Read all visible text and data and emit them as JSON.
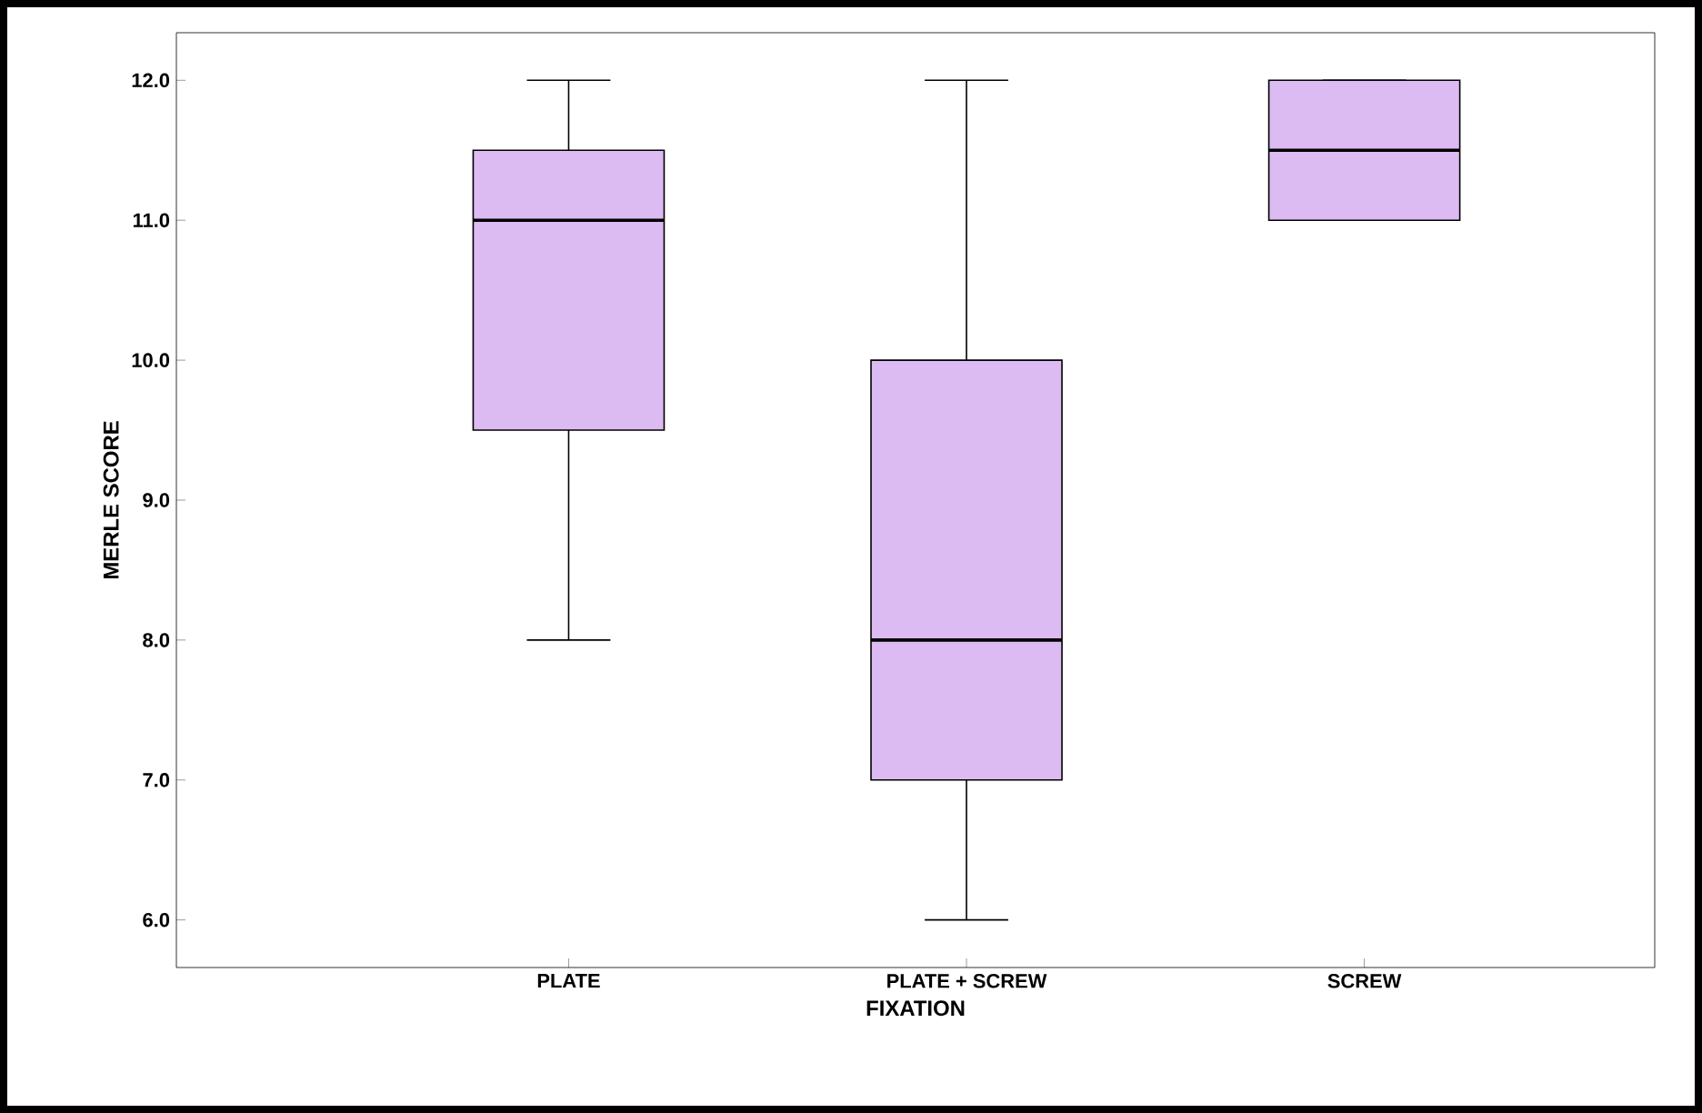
{
  "chart_data": {
    "type": "box",
    "xlabel": "FIXATION",
    "ylabel": "MERLE SCORE",
    "categories": [
      "PLATE",
      "PLATE + SCREW",
      "SCREW"
    ],
    "boxes": [
      {
        "low": 8,
        "q1": 9.5,
        "median": 11,
        "q3": 11.5,
        "high": 12
      },
      {
        "low": 6,
        "q1": 7,
        "median": 8,
        "q3": 10,
        "high": 12
      },
      {
        "low": 11,
        "q1": 11,
        "median": 11.5,
        "q3": 12,
        "high": 12
      }
    ],
    "color": "#dcbaf2",
    "ylim": [
      5.66,
      12.34
    ],
    "yticks": [
      {
        "value": 6,
        "label": "6.0"
      },
      {
        "value": 7,
        "label": "7.0"
      },
      {
        "value": 8,
        "label": "8.0"
      },
      {
        "value": 9,
        "label": "9.0"
      },
      {
        "value": 10,
        "label": "10.0"
      },
      {
        "value": 11,
        "label": "11.0"
      },
      {
        "value": 12,
        "label": "12.0"
      }
    ]
  }
}
